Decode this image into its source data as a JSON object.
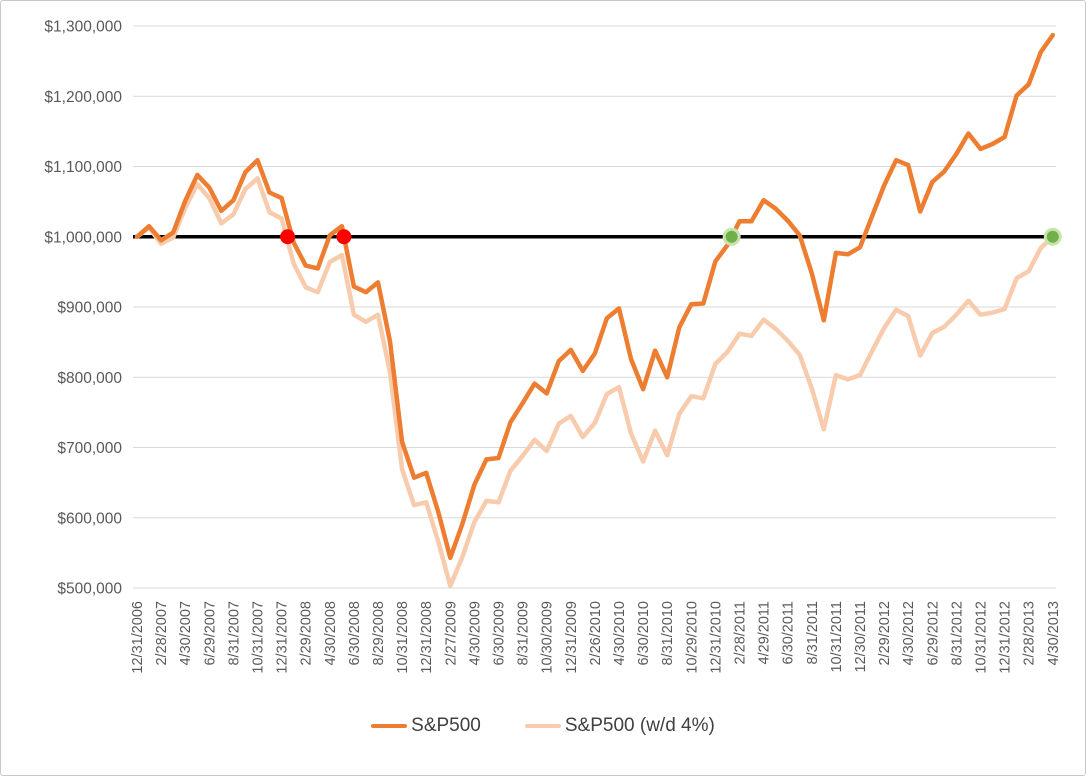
{
  "chart_data": {
    "type": "line",
    "title": "",
    "y_axis": {
      "min": 500000,
      "max": 1300000,
      "step": 100000,
      "tick_labels": [
        "$500,000",
        "$600,000",
        "$700,000",
        "$800,000",
        "$900,000",
        "$1,000,000",
        "$1,100,000",
        "$1,200,000",
        "$1,300,000"
      ]
    },
    "x_axis": {
      "months_total": 76,
      "label_every_n_months": 2,
      "tick_labels": [
        "12/31/2006",
        "2/28/2007",
        "4/30/2007",
        "6/29/2007",
        "8/31/2007",
        "10/31/2007",
        "12/31/2007",
        "2/29/2008",
        "4/30/2008",
        "6/30/2008",
        "8/29/2008",
        "10/31/2008",
        "12/31/2008",
        "2/27/2009",
        "4/30/2009",
        "6/30/2009",
        "8/31/2009",
        "10/30/2009",
        "12/31/2009",
        "2/26/2010",
        "4/30/2010",
        "6/30/2010",
        "8/31/2010",
        "10/29/2010",
        "12/31/2010",
        "2/28/2011",
        "4/29/2011",
        "6/30/2011",
        "8/31/2011",
        "10/31/2011",
        "12/30/2011",
        "2/29/2012",
        "4/30/2012",
        "6/29/2012",
        "8/31/2012",
        "10/31/2012",
        "12/31/2012",
        "2/28/2013",
        "4/30/2013"
      ]
    },
    "reference_line": {
      "value": 1000000,
      "color": "#000000"
    },
    "gridline_color": "#d9d9d9",
    "axis_text_color": "#595959",
    "series": [
      {
        "name": "S&P500",
        "color": "#ED7D31",
        "values": [
          1000000,
          1015000,
          995000,
          1006000,
          1051000,
          1088000,
          1070000,
          1037000,
          1052000,
          1092000,
          1109000,
          1063000,
          1055000,
          992000,
          959000,
          955000,
          1002000,
          1015000,
          929000,
          921000,
          935000,
          851000,
          708000,
          657000,
          664000,
          608000,
          543000,
          591000,
          647000,
          683000,
          685000,
          736000,
          763000,
          791000,
          777000,
          823000,
          839000,
          809000,
          834000,
          884000,
          898000,
          826000,
          783000,
          838000,
          800000,
          871000,
          904000,
          905000,
          965000,
          988000,
          1022000,
          1022000,
          1052000,
          1040000,
          1023000,
          1002000,
          948000,
          881000,
          977000,
          975000,
          985000,
          1029000,
          1073000,
          1109000,
          1102000,
          1036000,
          1078000,
          1093000,
          1118000,
          1147000,
          1125000,
          1132000,
          1142000,
          1201000,
          1217000,
          1263000,
          1287000
        ]
      },
      {
        "name": "S&P500 (w/d 4%)",
        "color": "#F8CBAD",
        "values": [
          1000000,
          1013000,
          990000,
          999000,
          1041000,
          1075000,
          1055000,
          1019000,
          1032000,
          1068000,
          1083000,
          1035000,
          1026000,
          962000,
          928000,
          921000,
          964000,
          974000,
          889000,
          879000,
          889000,
          807000,
          669000,
          618000,
          622000,
          566000,
          503000,
          544000,
          594000,
          624000,
          622000,
          667000,
          688000,
          711000,
          695000,
          734000,
          745000,
          715000,
          735000,
          776000,
          786000,
          720000,
          680000,
          724000,
          689000,
          748000,
          773000,
          770000,
          819000,
          836000,
          862000,
          859000,
          882000,
          869000,
          852000,
          832000,
          784000,
          726000,
          803000,
          797000,
          803000,
          837000,
          870000,
          896000,
          887000,
          831000,
          863000,
          872000,
          889000,
          909000,
          889000,
          892000,
          897000,
          941000,
          951000,
          984000,
          1000000
        ]
      }
    ],
    "markers": [
      {
        "kind": "cross-below-1M",
        "color": "#FF0000",
        "halo_color": "",
        "month_index": 12.5,
        "value": 1000000
      },
      {
        "kind": "cross-below-1M",
        "color": "#FF0000",
        "halo_color": "",
        "month_index": 17.17,
        "value": 1000000
      },
      {
        "kind": "cross-above-1M",
        "color": "#6FB04A",
        "halo_color": "#C9E3AE",
        "month_index": 49.35,
        "value": 1000000
      },
      {
        "kind": "endpoint-at-1M",
        "color": "#6FB04A",
        "halo_color": "#C9E3AE",
        "month_index": 76,
        "value": 1000000
      }
    ],
    "legend": [
      {
        "label": "S&P500",
        "color": "#ED7D31"
      },
      {
        "label": "S&P500 (w/d 4%)",
        "color": "#F8CBAD"
      }
    ]
  }
}
